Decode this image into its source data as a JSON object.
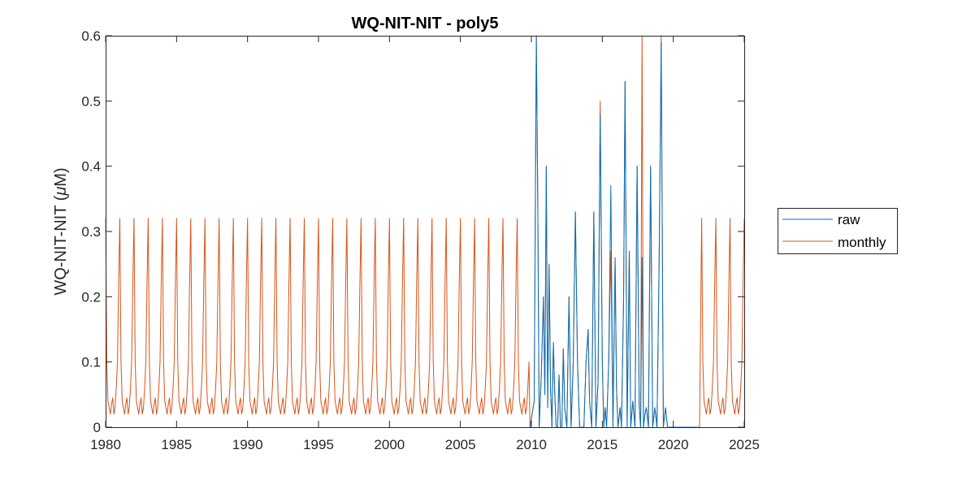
{
  "chart_data": {
    "type": "line",
    "title": "WQ-NIT-NIT - poly5",
    "ylabel_main": "WQ-NIT-NIT (",
    "ylabel_mu": "μ",
    "ylabel_unit": "M)",
    "xlim": [
      1980,
      2025
    ],
    "ylim": [
      0,
      0.6
    ],
    "xticks": [
      1980,
      1985,
      1990,
      1995,
      2000,
      2005,
      2010,
      2015,
      2020,
      2025
    ],
    "yticks": [
      "0",
      "0.1",
      "0.2",
      "0.3",
      "0.4",
      "0.5",
      "0.6"
    ],
    "ytick_values": [
      0,
      0.1,
      0.2,
      0.3,
      0.4,
      0.5,
      0.6
    ],
    "legend_position": "outside-right",
    "series": [
      {
        "name": "raw",
        "color": "#0072BD",
        "x": [
          2009.9,
          2010.05,
          2010.2,
          2010.35,
          2010.45,
          2010.55,
          2010.7,
          2010.85,
          2010.95,
          2011.05,
          2011.15,
          2011.25,
          2011.35,
          2011.45,
          2011.55,
          2011.65,
          2011.75,
          2011.85,
          2011.95,
          2012.05,
          2012.15,
          2012.25,
          2012.35,
          2012.5,
          2012.65,
          2012.8,
          2012.95,
          2013.1,
          2013.25,
          2013.4,
          2013.55,
          2013.7,
          2013.85,
          2014.0,
          2014.1,
          2014.25,
          2014.4,
          2014.55,
          2014.7,
          2014.85,
          2015.0,
          2015.1,
          2015.2,
          2015.3,
          2015.45,
          2015.6,
          2015.75,
          2015.9,
          2016.0,
          2016.1,
          2016.25,
          2016.35,
          2016.5,
          2016.6,
          2016.75,
          2016.9,
          2017.0,
          2017.15,
          2017.3,
          2017.45,
          2017.6,
          2017.7,
          2017.8,
          2017.9,
          2018.0,
          2018.1,
          2018.25,
          2018.4,
          2018.55,
          2018.7,
          2018.85,
          2019.0,
          2019.15,
          2019.3,
          2019.45,
          2019.6,
          2019.75,
          2019.9,
          2020.0,
          2020.1,
          2020.2,
          2020.35,
          2020.5,
          2020.65,
          2020.8,
          2020.95,
          2021.1,
          2021.3,
          2021.5,
          2021.7,
          2021.85
        ],
        "values": [
          0.0,
          0.02,
          0.04,
          0.62,
          0.35,
          0.0,
          0.08,
          0.2,
          0.05,
          0.4,
          0.03,
          0.25,
          0.06,
          0.0,
          0.13,
          0.05,
          0.0,
          0.0,
          0.08,
          0.0,
          0.0,
          0.12,
          0.03,
          0.0,
          0.2,
          0.0,
          0.1,
          0.33,
          0.1,
          0.0,
          0.0,
          0.0,
          0.1,
          0.15,
          0.04,
          0.0,
          0.33,
          0.0,
          0.07,
          0.48,
          0.1,
          0.0,
          0.03,
          0.0,
          0.1,
          0.37,
          0.0,
          0.26,
          0.06,
          0.0,
          0.03,
          0.0,
          0.2,
          0.53,
          0.0,
          0.27,
          0.0,
          0.04,
          0.0,
          0.4,
          0.03,
          0.0,
          0.26,
          0.0,
          0.02,
          0.03,
          0.0,
          0.4,
          0.0,
          0.03,
          0.0,
          0.25,
          0.59,
          0.0,
          0.03,
          0.0,
          0.0,
          0.0,
          0.0,
          0.0,
          0.0,
          0.0,
          0.0,
          0.0,
          0.0,
          0.0,
          0.0,
          0.0,
          0.0,
          0.0,
          0.0
        ]
      },
      {
        "name": "monthly",
        "color": "#D95319",
        "seasonal_cycle": [
          0.32,
          0.1,
          0.04,
          0.03,
          0.02,
          0.035,
          0.045,
          0.02,
          0.03,
          0.06,
          0.1,
          0.22
        ],
        "cycle_start_year": 1980,
        "cycle_end_year": 2009.9,
        "observed_x": [
          2009.9,
          2010.05,
          2010.2,
          2010.35,
          2010.45,
          2010.55,
          2010.7,
          2010.85,
          2010.95,
          2011.05,
          2011.15,
          2011.25,
          2011.35,
          2011.45,
          2011.55,
          2011.65,
          2011.75,
          2011.85,
          2011.95,
          2012.05,
          2012.15,
          2012.25,
          2012.35,
          2012.5,
          2012.65,
          2012.8,
          2012.95,
          2013.1,
          2013.25,
          2013.4,
          2013.55,
          2013.7,
          2013.85,
          2014.0,
          2014.1,
          2014.25,
          2014.4,
          2014.55,
          2014.7,
          2014.85,
          2015.0,
          2015.1,
          2015.2,
          2015.3,
          2015.45,
          2015.6,
          2015.75,
          2015.9,
          2016.0,
          2016.1,
          2016.25,
          2016.35,
          2016.5,
          2016.6,
          2016.75,
          2016.9,
          2017.0,
          2017.15,
          2017.3,
          2017.45,
          2017.6,
          2017.7,
          2017.8,
          2017.9,
          2018.0,
          2018.1,
          2018.25,
          2018.4,
          2018.55,
          2018.7,
          2018.85,
          2019.0,
          2019.15,
          2019.3,
          2019.45,
          2019.6,
          2019.75,
          2019.9,
          2020.0,
          2020.1,
          2020.2,
          2020.35,
          2020.5,
          2020.65,
          2020.8,
          2020.95,
          2021.1,
          2021.3,
          2021.5,
          2021.7,
          2021.85
        ],
        "observed_values": [
          0.0,
          0.02,
          0.04,
          0.6,
          0.35,
          0.0,
          0.08,
          0.2,
          0.05,
          0.4,
          0.03,
          0.25,
          0.06,
          0.0,
          0.13,
          0.05,
          0.0,
          0.0,
          0.08,
          0.0,
          0.0,
          0.12,
          0.03,
          0.0,
          0.2,
          0.0,
          0.1,
          0.33,
          0.1,
          0.0,
          0.0,
          0.0,
          0.1,
          0.15,
          0.04,
          0.0,
          0.33,
          0.0,
          0.07,
          0.5,
          0.1,
          0.0,
          0.03,
          0.0,
          0.1,
          0.27,
          0.0,
          0.26,
          0.06,
          0.0,
          0.03,
          0.0,
          0.2,
          0.53,
          0.0,
          0.27,
          0.0,
          0.04,
          0.0,
          0.4,
          0.03,
          0.0,
          0.6,
          0.0,
          0.02,
          0.03,
          0.0,
          0.4,
          0.0,
          0.03,
          0.0,
          0.25,
          0.6,
          0.0,
          0.03,
          0.0,
          0.0,
          0.0,
          0.0,
          0.0,
          0.0,
          0.0,
          0.0,
          0.0,
          0.0,
          0.0,
          0.0,
          0.0,
          0.0,
          0.0,
          0.0
        ],
        "resume_cycle_year": 2022.0
      }
    ]
  }
}
